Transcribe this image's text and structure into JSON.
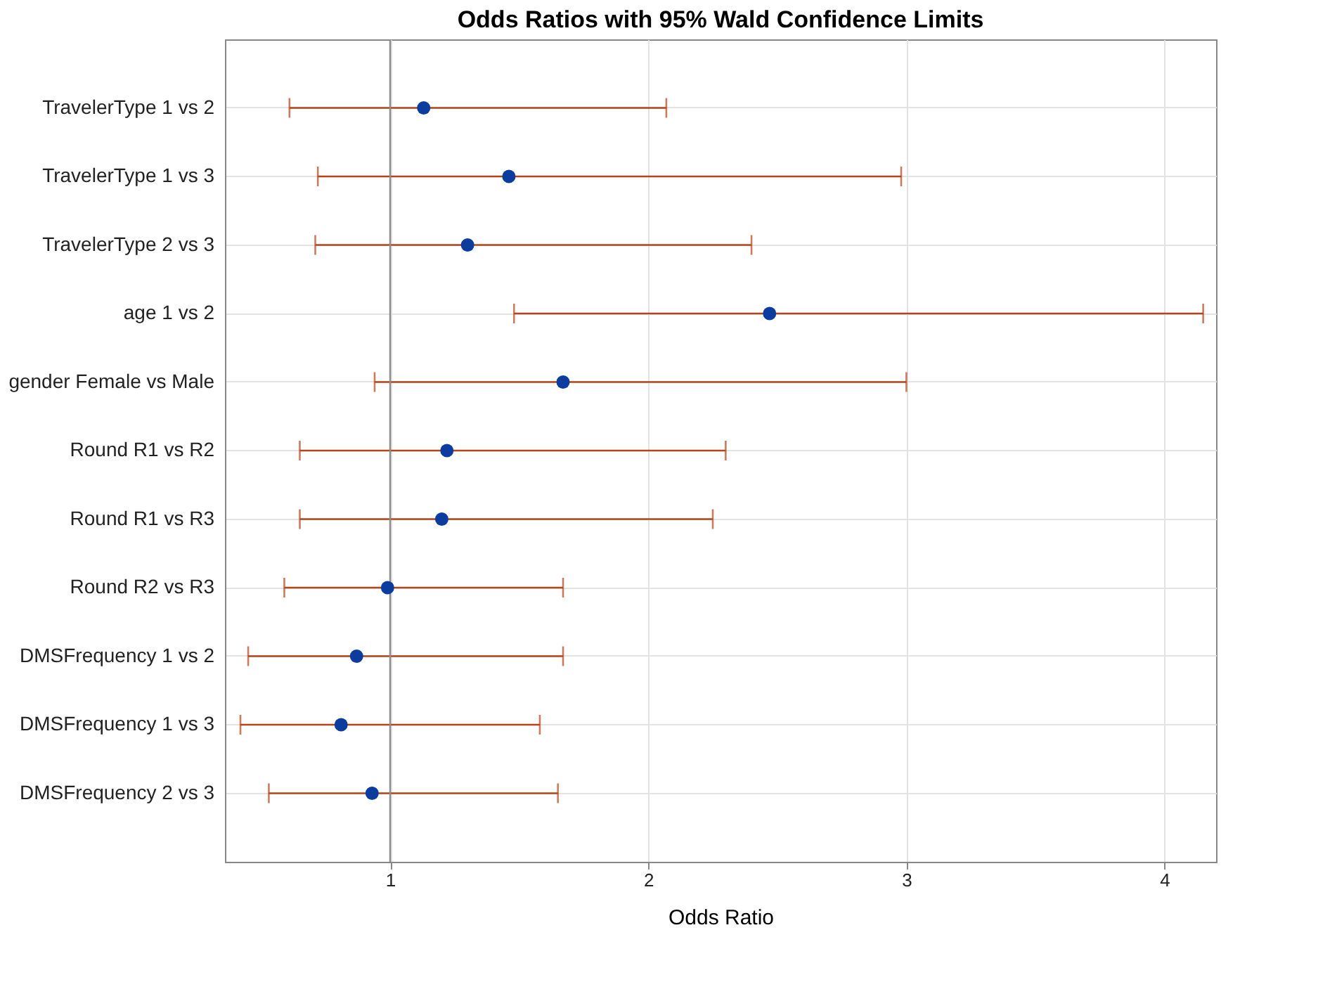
{
  "chart_data": {
    "type": "scatter",
    "orientation": "horizontal",
    "title": "Odds Ratios with 95% Wald Confidence Limits",
    "xlabel": "Odds Ratio",
    "categories": [
      "TravelerType 1 vs 2",
      "TravelerType 1 vs 3",
      "TravelerType 2 vs 3",
      "age 1 vs 2",
      "gender Female vs Male",
      "Round R1 vs R2",
      "Round R1 vs R3",
      "Round R2 vs R3",
      "DMSFrequency 1 vs 2",
      "DMSFrequency 1 vs 3",
      "DMSFrequency 2 vs 3"
    ],
    "color": "#0b3c9e",
    "values": [
      1.13,
      1.46,
      1.3,
      2.47,
      1.67,
      1.22,
      1.2,
      0.99,
      0.87,
      0.81,
      0.93
    ],
    "errors": [
      [
        0.61,
        2.07
      ],
      [
        0.72,
        2.98
      ],
      [
        0.71,
        2.4
      ],
      [
        1.48,
        4.15
      ],
      [
        0.94,
        3.0
      ],
      [
        0.65,
        2.3
      ],
      [
        0.65,
        2.25
      ],
      [
        0.59,
        1.67
      ],
      [
        0.45,
        1.67
      ],
      [
        0.42,
        1.58
      ],
      [
        0.53,
        1.65
      ]
    ],
    "xlim": [
      0.36,
      4.2
    ],
    "xticks": [
      1,
      2,
      3,
      4
    ],
    "grid": true,
    "marker": "circle",
    "ref_lines": [
      {
        "axis": "x",
        "value": 1,
        "color": "#8c8c8c"
      }
    ]
  }
}
